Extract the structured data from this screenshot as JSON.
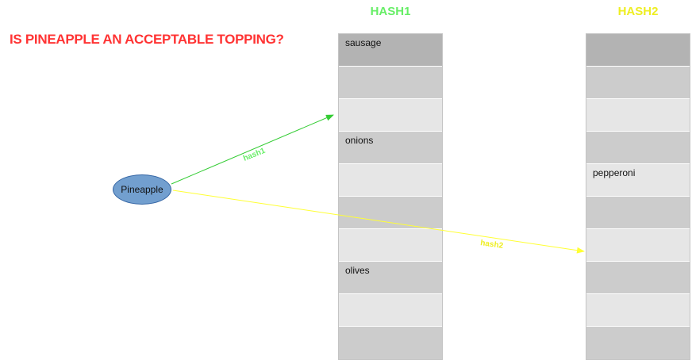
{
  "title": "IS PINEAPPLE  AN ACCEPTABLE TOPPING?",
  "colors": {
    "title": "#ff3333",
    "hash1": "#66ee66",
    "hash2": "#eeee22",
    "arrow_hash1": "#33cc33",
    "arrow_hash2": "#ffff33",
    "node_fill": "#729fcf"
  },
  "node": {
    "label": "Pineapple"
  },
  "tables": [
    {
      "name": "HASH1",
      "cells": [
        "sausage",
        "",
        "",
        "onions",
        "",
        "",
        "",
        "olives",
        "",
        ""
      ]
    },
    {
      "name": "HASH2",
      "cells": [
        "",
        "",
        "",
        "",
        "pepperoni",
        "",
        "",
        "",
        "",
        ""
      ]
    }
  ],
  "edges": [
    {
      "label": "hash1",
      "from": "Pineapple",
      "to": "HASH1 slot 3"
    },
    {
      "label": "hash2",
      "from": "Pineapple",
      "to": "HASH2 slot 7"
    }
  ]
}
